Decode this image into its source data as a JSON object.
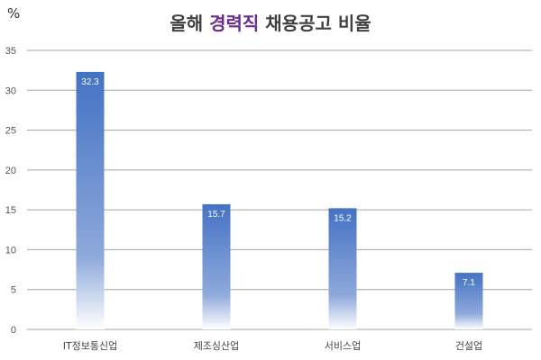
{
  "chart_data": {
    "type": "bar",
    "title_part1": "올해 ",
    "title_highlight": "경력직",
    "title_part2": " 채용공고 비율",
    "ylabel": "%",
    "ylim": [
      0,
      35
    ],
    "yticks": [
      0,
      5,
      10,
      15,
      20,
      25,
      30,
      35
    ],
    "categories": [
      "IT정보통신업",
      "제조싱산업",
      "서비스업",
      "건설업"
    ],
    "values": [
      32.3,
      15.7,
      15.2,
      7.1
    ],
    "data_labels": [
      "32.3",
      "15.7",
      "15.2",
      "7.1"
    ],
    "grid": true,
    "colors": {
      "bar_top": "#4472c4",
      "bar_bottom": "#ffffff",
      "grid": "#a6a6a6",
      "title_highlight": "#6a2c8e"
    }
  }
}
